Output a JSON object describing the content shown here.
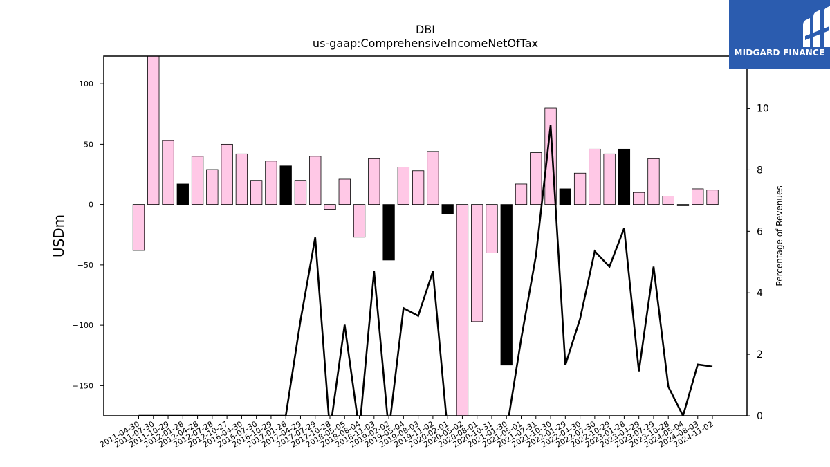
{
  "brand": {
    "name": "MIDGARD FINANCE",
    "bg_color": "#2b5caf"
  },
  "chart_data": {
    "type": "bar",
    "title": "DBI",
    "subtitle": "us-gaap:ComprehensiveIncomeNetOfTax",
    "ylabel": "USDm",
    "y2label": "Percentage of Revenues",
    "ylim": [
      -175,
      123
    ],
    "y2lim": [
      0,
      11.7
    ],
    "yticks": [
      100,
      50,
      0,
      -50,
      -100,
      -150
    ],
    "y2ticks": [
      0,
      2,
      4,
      6,
      8,
      10
    ],
    "grid": false,
    "categories": [
      "2011-04-30",
      "2011-07-30",
      "2011-10-29",
      "2012-01-28",
      "2012-04-28",
      "2012-07-28",
      "2012-10-27",
      "2016-04-30",
      "2016-07-30",
      "2016-10-29",
      "2017-01-28",
      "2017-04-29",
      "2017-07-29",
      "2017-10-28",
      "2018-05-05",
      "2018-08-04",
      "2018-11-03",
      "2019-02-02",
      "2019-05-04",
      "2019-08-03",
      "2019-11-02",
      "2020-02-01",
      "2020-05-02",
      "2020-08-01",
      "2020-10-31",
      "2021-01-30",
      "2021-05-01",
      "2021-07-31",
      "2021-10-30",
      "2022-01-29",
      "2022-04-30",
      "2022-07-30",
      "2022-10-29",
      "2023-01-28",
      "2023-04-29",
      "2023-07-29",
      "2023-10-28",
      "2024-05-04",
      "2024-08-03",
      "2024-11-02"
    ],
    "series": [
      {
        "values": [
          -38,
          123,
          53,
          17,
          40,
          29,
          50,
          42,
          20,
          36,
          32,
          20,
          40,
          -4,
          21,
          -27,
          38,
          -46,
          31,
          28,
          44,
          -8,
          -175,
          -97,
          -40,
          -133,
          17,
          43,
          80,
          13,
          26,
          46,
          42,
          46,
          10,
          38,
          7,
          -1,
          13,
          12
        ],
        "colors": [
          "pink",
          "pink",
          "pink",
          "black",
          "pink",
          "pink",
          "pink",
          "pink",
          "pink",
          "pink",
          "black",
          "pink",
          "pink",
          "pink",
          "pink",
          "pink",
          "pink",
          "black",
          "pink",
          "pink",
          "pink",
          "black",
          "pink",
          "pink",
          "pink",
          "black",
          "pink",
          "pink",
          "pink",
          "black",
          "pink",
          "pink",
          "pink",
          "black",
          "pink",
          "pink",
          "pink",
          "pink",
          "pink",
          "pink"
        ]
      },
      {
        "type": "line",
        "axis": "right",
        "values": [
          0,
          0,
          0,
          0,
          0,
          0,
          0,
          0,
          0,
          0,
          0,
          3.1,
          5.8,
          -0.5,
          2.96,
          -0.5,
          4.7,
          -0.5,
          3.5,
          3.25,
          4.7,
          -0.5,
          -0.5,
          -0.5,
          -0.5,
          -0.5,
          2.5,
          5.2,
          9.45,
          1.65,
          3.15,
          5.35,
          4.85,
          6.1,
          1.45,
          4.85,
          0.95,
          0,
          1.67,
          1.6
        ]
      }
    ],
    "colors": {
      "pink": "#ffc8e6",
      "black": "#000000",
      "line": "#000000"
    }
  }
}
